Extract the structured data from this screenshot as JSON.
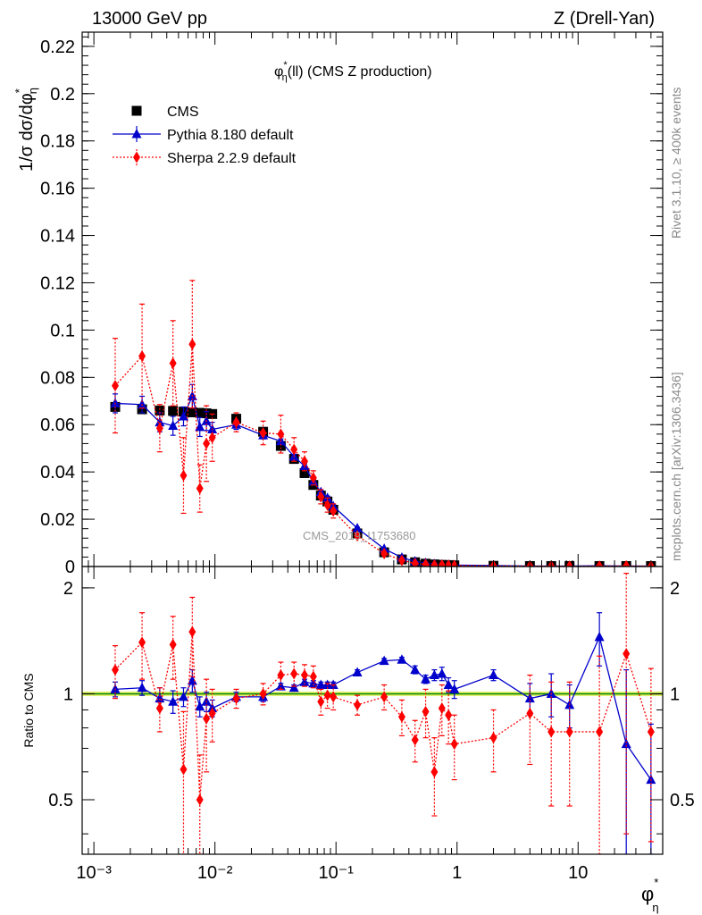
{
  "header": {
    "left": "13000 GeV pp",
    "right": "Z (Drell-Yan)"
  },
  "side_labels": {
    "rivet": "Rivet 3.1.10, ≥ 400k events",
    "mcplots": "mcplots.cern.ch [arXiv:1306.3436]"
  },
  "watermark": "CMS_2019_I1753680",
  "chart_data": {
    "type": "line",
    "title": "φ*η(ll) (CMS Z production)",
    "title_parts": {
      "phi": "φ",
      "star": "*",
      "sub": "η",
      "rest": "(ll) (CMS Z production)"
    },
    "xlabel": "φ*η",
    "xlabel_parts": {
      "phi": "φ",
      "star": "*",
      "sub": "η"
    },
    "ylabel": "1/σ dσ/dφ*η",
    "ylabel_parts": {
      "main": "1/σ dσ/dφ",
      "star": "*",
      "sub": "η"
    },
    "ratio_ylabel": "Ratio to CMS",
    "xscale": "log",
    "xlim": [
      0.0008,
      50
    ],
    "ylim": [
      0,
      0.226
    ],
    "ratio_ylim": [
      0.35,
      2.3
    ],
    "x_ticks": [
      0.001,
      0.01,
      0.1,
      1,
      10
    ],
    "x_tick_labels": [
      "10⁻³",
      "10⁻²",
      "10⁻¹",
      "1",
      "10"
    ],
    "y_ticks": [
      0,
      0.02,
      0.04,
      0.06,
      0.08,
      0.1,
      0.12,
      0.14,
      0.16,
      0.18,
      0.2,
      0.22
    ],
    "y_tick_labels": [
      "0",
      "0.02",
      "0.04",
      "0.06",
      "0.08",
      "0.1",
      "0.12",
      "0.14",
      "0.16",
      "0.18",
      "0.2",
      "0.22"
    ],
    "ratio_ticks": [
      0.5,
      1,
      2
    ],
    "ratio_tick_labels": [
      "0.5",
      "1",
      "2"
    ],
    "legend_position": "top-left",
    "grid": false,
    "x": [
      0.0015,
      0.0025,
      0.0035,
      0.0045,
      0.0055,
      0.0065,
      0.0075,
      0.0085,
      0.0095,
      0.015,
      0.025,
      0.035,
      0.045,
      0.055,
      0.065,
      0.075,
      0.085,
      0.095,
      0.15,
      0.25,
      0.35,
      0.45,
      0.55,
      0.65,
      0.75,
      0.85,
      0.95,
      2,
      4,
      6,
      8.5,
      15,
      25,
      40
    ],
    "series": [
      {
        "name": "CMS",
        "color": "#000000",
        "marker": "square",
        "values": [
          0.0675,
          0.0665,
          0.066,
          0.0658,
          0.0655,
          0.0652,
          0.065,
          0.0648,
          0.0645,
          0.0625,
          0.057,
          0.051,
          0.0455,
          0.0395,
          0.0345,
          0.03,
          0.0275,
          0.024,
          0.014,
          0.006,
          0.003,
          0.0018,
          0.0012,
          0.0009,
          0.0007,
          0.0006,
          0.0005,
          0.0003,
          0.0002,
          0.0002,
          0.0002,
          0.0002,
          0.0002,
          0.0002
        ],
        "errors": [
          0.0005,
          0.0005,
          0.0005,
          0.0005,
          0.0005,
          0.0005,
          0.0005,
          0.0005,
          0.0005,
          0.0005,
          0.0005,
          0.0005,
          0.0005,
          0.0005,
          0.0005,
          0.0005,
          0.0005,
          0.0005,
          0.0003,
          0.0002,
          0.0001,
          0.0001,
          0.0001,
          0.0001,
          0.0001,
          0.0001,
          0.0001,
          0.0001,
          0.0001,
          0.0001,
          0.0001,
          0.0001,
          0.0001,
          0.0001
        ],
        "ratio": [
          1,
          1,
          1,
          1,
          1,
          1,
          1,
          1,
          1,
          1,
          1,
          1,
          1,
          1,
          1,
          1,
          1,
          1,
          1,
          1,
          1,
          1,
          1,
          1,
          1,
          1,
          1,
          1,
          1,
          1,
          1,
          1,
          1,
          1
        ]
      },
      {
        "name": "Pythia 8.180 default",
        "color": "#0000cc",
        "marker": "triangle",
        "line": "solid",
        "values": [
          0.069,
          0.0685,
          0.061,
          0.0595,
          0.0635,
          0.072,
          0.059,
          0.0615,
          0.058,
          0.06,
          0.0555,
          0.053,
          0.0465,
          0.0425,
          0.036,
          0.0315,
          0.029,
          0.0255,
          0.0162,
          0.0075,
          0.0038,
          0.0022,
          0.0015,
          0.0011,
          0.0009,
          0.0008,
          0.0006,
          0.0004,
          0.0002,
          0.0002,
          0.0002,
          0.0003,
          0.0002,
          0.0002
        ],
        "errors": [
          0.004,
          0.0035,
          0.004,
          0.004,
          0.004,
          0.005,
          0.004,
          0.004,
          0.003,
          0.002,
          0.0015,
          0.001,
          0.001,
          0.001,
          0.0008,
          0.0008,
          0.0008,
          0.0007,
          0.0004,
          0.0002,
          0.0001,
          0.0001,
          0.0001,
          0.0001,
          0.0001,
          0.0001,
          0.0001,
          0.0001,
          0.0001,
          0.0001,
          0.0001,
          0.0001,
          0.0001,
          0.0001
        ],
        "ratio": [
          1.03,
          1.04,
          0.97,
          0.95,
          0.98,
          1.09,
          0.92,
          0.95,
          0.91,
          0.98,
          0.98,
          1.05,
          1.04,
          1.08,
          1.07,
          1.06,
          1.06,
          1.06,
          1.15,
          1.24,
          1.25,
          1.17,
          1.1,
          1.13,
          1.14,
          1.06,
          1.03,
          1.13,
          0.97,
          1.0,
          0.93,
          1.45,
          0.72,
          0.57
        ],
        "ratio_errors": [
          0.05,
          0.05,
          0.07,
          0.07,
          0.06,
          0.08,
          0.06,
          0.06,
          0.05,
          0.03,
          0.03,
          0.02,
          0.02,
          0.02,
          0.02,
          0.02,
          0.02,
          0.02,
          0.02,
          0.02,
          0.02,
          0.03,
          0.03,
          0.04,
          0.05,
          0.05,
          0.06,
          0.04,
          0.1,
          0.14,
          0.13,
          0.25,
          0.45,
          0.25
        ]
      },
      {
        "name": "Sherpa 2.2.9 default",
        "color": "#ff0000",
        "marker": "diamond",
        "line": "dotted",
        "values": [
          0.0765,
          0.089,
          0.0585,
          0.086,
          0.0385,
          0.094,
          0.033,
          0.052,
          0.0545,
          0.061,
          0.0565,
          0.056,
          0.0495,
          0.0445,
          0.0375,
          0.0295,
          0.026,
          0.0235,
          0.013,
          0.0055,
          0.0026,
          0.0013,
          0.0009,
          0.0006,
          0.0006,
          0.0005,
          0.0004,
          0.00025,
          0.00018,
          0.00016,
          0.00015,
          0.00016,
          0.00026,
          0.00015
        ],
        "errors": [
          0.02,
          0.022,
          0.01,
          0.018,
          0.016,
          0.027,
          0.01,
          0.016,
          0.01,
          0.004,
          0.005,
          0.008,
          0.005,
          0.004,
          0.003,
          0.003,
          0.003,
          0.003,
          0.001,
          0.0005,
          0.0003,
          0.0002,
          0.0002,
          0.0002,
          0.0001,
          0.0001,
          0.0001,
          0.0001,
          0.0001,
          0.0001,
          0.0001,
          0.0001,
          0.0002,
          0.0001
        ],
        "ratio": [
          1.17,
          1.4,
          0.91,
          1.38,
          0.61,
          1.5,
          0.5,
          0.85,
          0.88,
          0.97,
          1.0,
          1.13,
          1.14,
          1.13,
          1.12,
          0.95,
          0.99,
          0.98,
          0.93,
          0.98,
          0.86,
          0.74,
          0.89,
          0.6,
          0.91,
          0.87,
          0.72,
          0.75,
          0.88,
          0.78,
          0.78,
          0.78,
          1.3,
          0.78
        ],
        "ratio_errors": [
          0.2,
          0.3,
          0.13,
          0.28,
          0.28,
          0.38,
          0.17,
          0.25,
          0.15,
          0.06,
          0.07,
          0.1,
          0.09,
          0.08,
          0.08,
          0.08,
          0.08,
          0.08,
          0.06,
          0.08,
          0.1,
          0.1,
          0.14,
          0.15,
          0.15,
          0.15,
          0.15,
          0.15,
          0.25,
          0.3,
          0.3,
          0.5,
          0.9,
          0.4
        ]
      }
    ]
  }
}
